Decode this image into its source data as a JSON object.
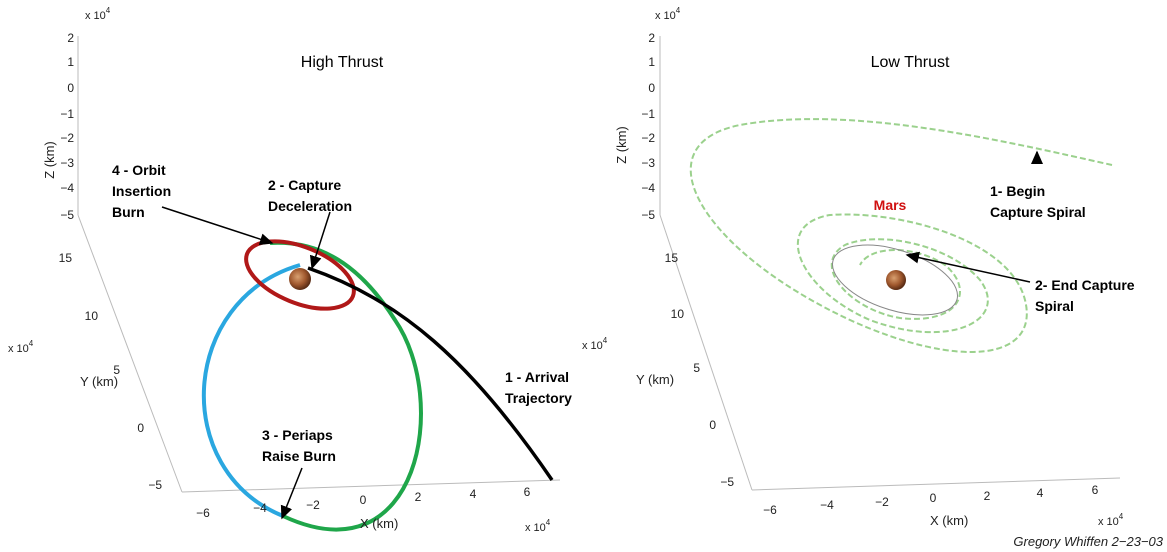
{
  "left": {
    "title": "High Thrust",
    "z_multiplier": {
      "base": "x 10",
      "exp": "4"
    },
    "y_multiplier": {
      "base": "x 10",
      "exp": "4"
    },
    "x_multiplier": {
      "base": "x 10",
      "exp": "4"
    },
    "z_label": "Z (km)",
    "y_label": "Y (km)",
    "x_label": "X (km)",
    "z_ticks": [
      "2",
      "1",
      "0",
      "−1",
      "−2",
      "−3",
      "−4",
      "−5"
    ],
    "y_ticks": [
      "15",
      "10",
      "5",
      "0",
      "−5"
    ],
    "x_ticks": [
      "−6",
      "−4",
      "−2",
      "0",
      "2",
      "4",
      "6"
    ],
    "annotations": [
      [
        "4 - Orbit",
        "Insertion",
        "Burn"
      ],
      [
        "2 - Capture",
        "Deceleration"
      ],
      [
        "1 - Arrival",
        "Trajectory"
      ],
      [
        "3 - Periaps",
        "Raise Burn"
      ]
    ]
  },
  "right": {
    "title": "Low Thrust",
    "z_multiplier": {
      "base": "x 10",
      "exp": "4"
    },
    "y_multiplier": {
      "base": "x 10",
      "exp": "4"
    },
    "x_multiplier": {
      "base": "x 10",
      "exp": "4"
    },
    "z_label": "Z (km)",
    "y_label": "Y (km)",
    "x_label": "X (km)",
    "z_ticks": [
      "2",
      "1",
      "0",
      "−1",
      "−2",
      "−3",
      "−4",
      "−5"
    ],
    "y_ticks": [
      "15",
      "10",
      "5",
      "0",
      "−5"
    ],
    "x_ticks": [
      "−6",
      "−4",
      "−2",
      "0",
      "2",
      "4",
      "6"
    ],
    "mars_label": "Mars",
    "annotations": [
      [
        "1- Begin",
        "Capture Spiral"
      ],
      [
        "2- End Capture",
        "Spiral"
      ]
    ]
  },
  "credit": "Gregory Whiffen 2−23−03"
}
